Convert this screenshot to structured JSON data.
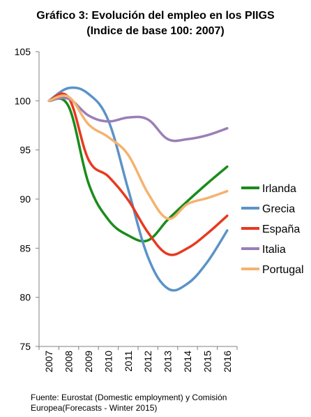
{
  "chart_data": {
    "type": "line",
    "title": "Gráfico 3: Evolución del empleo en los PIIGS",
    "subtitle": "(Indice de base 100: 2007)",
    "xlabel": "",
    "ylabel": "",
    "categories": [
      "2007",
      "2008",
      "2009",
      "2010",
      "2011",
      "2012",
      "2013",
      "2014",
      "2015",
      "2016"
    ],
    "ylim": [
      75,
      105
    ],
    "yticks": [
      75,
      80,
      85,
      90,
      95,
      100,
      105
    ],
    "grid": false,
    "legend_position": "right",
    "series": [
      {
        "name": "Irlanda",
        "color": "#1a8c1a",
        "values": [
          100,
          99.4,
          91.6,
          87.9,
          86.3,
          85.8,
          87.9,
          89.8,
          91.6,
          93.3
        ]
      },
      {
        "name": "Grecia",
        "color": "#5b93c7",
        "values": [
          100,
          101.3,
          100.7,
          98.0,
          91.0,
          84.1,
          80.9,
          81.4,
          83.6,
          86.8
        ]
      },
      {
        "name": "España",
        "color": "#e8391f",
        "values": [
          100,
          100.3,
          94.0,
          92.3,
          89.9,
          86.6,
          84.4,
          85.0,
          86.5,
          88.3
        ]
      },
      {
        "name": "Italia",
        "color": "#9a7fb6",
        "values": [
          100,
          100.2,
          98.5,
          97.9,
          98.3,
          98.1,
          96.1,
          96.1,
          96.5,
          97.2
        ]
      },
      {
        "name": "Portugal",
        "color": "#f5b26e",
        "values": [
          100,
          100.4,
          97.6,
          96.3,
          94.5,
          90.6,
          88.0,
          89.5,
          90.1,
          90.8
        ]
      }
    ]
  },
  "source": {
    "line1": "Fuente: Eurostat (Domestic employment) y Comisión",
    "line2": "Europea(Forecasts - Winter 2015)"
  }
}
